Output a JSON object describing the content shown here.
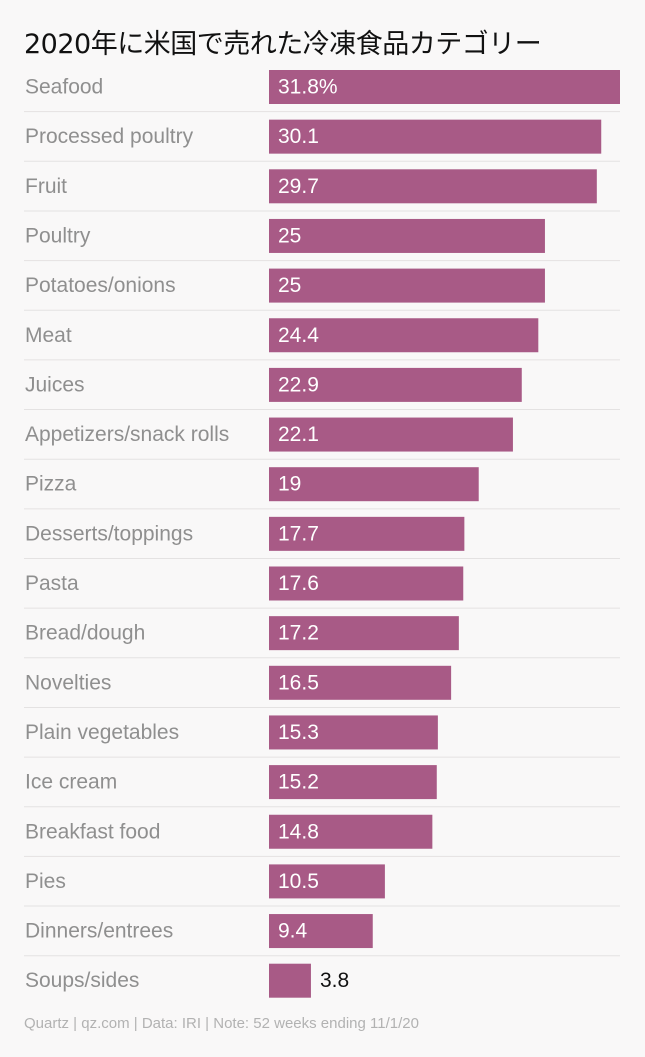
{
  "title": "2020年に米国で売れた冷凍食品カテゴリー",
  "footer": "Quartz | qz.com | Data: IRI | Note: 52 weeks ending 11/1/20",
  "colors": {
    "bar": "#a85a86",
    "background": "#f9f8f8"
  },
  "chart_data": {
    "type": "bar",
    "orientation": "horizontal",
    "title": "2020年に米国で売れた冷凍食品カテゴリー",
    "xlabel": "",
    "ylabel": "",
    "xlim": [
      0,
      31.8
    ],
    "categories": [
      "Seafood",
      "Processed poultry",
      "Fruit",
      "Poultry",
      "Potatoes/onions",
      "Meat",
      "Juices",
      "Appetizers/snack rolls",
      "Pizza",
      "Desserts/toppings",
      "Pasta",
      "Bread/dough",
      "Novelties",
      "Plain vegetables",
      "Ice cream",
      "Breakfast food",
      "Pies",
      "Dinners/entrees",
      "Soups/sides"
    ],
    "values": [
      31.8,
      30.1,
      29.7,
      25,
      25,
      24.4,
      22.9,
      22.1,
      19,
      17.7,
      17.6,
      17.2,
      16.5,
      15.3,
      15.2,
      14.8,
      10.5,
      9.4,
      3.8
    ],
    "value_labels": [
      "31.8%",
      "30.1",
      "29.7",
      "25",
      "25",
      "24.4",
      "22.9",
      "22.1",
      "19",
      "17.7",
      "17.6",
      "17.2",
      "16.5",
      "15.3",
      "15.2",
      "14.8",
      "10.5",
      "9.4",
      "3.8"
    ]
  }
}
